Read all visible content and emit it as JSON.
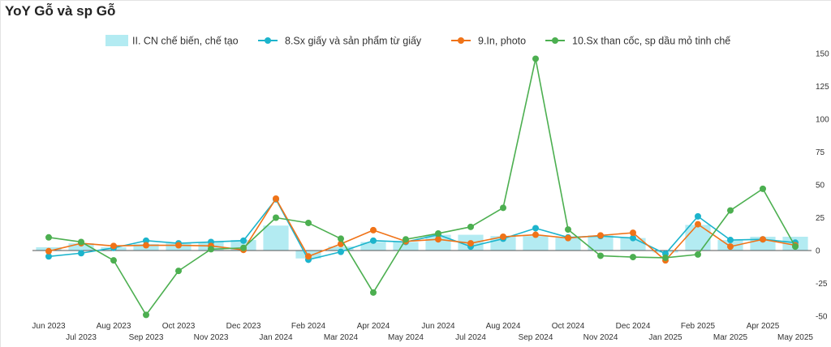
{
  "title": "YoY Gỗ và sp Gỗ",
  "colors": {
    "bar": "#b3ebf2",
    "paper": "#1cb4cc",
    "print": "#f07318",
    "coke": "#4caf50",
    "zero_line": "#555555"
  },
  "chart_data": {
    "type": "bar+line",
    "title": "YoY Gỗ và sp Gỗ",
    "xlabel": "",
    "ylabel": "",
    "categories": [
      "Jun 2023",
      "Jul 2023",
      "Aug 2023",
      "Sep 2023",
      "Oct 2023",
      "Nov 2023",
      "Dec 2023",
      "Jan 2024",
      "Feb 2024",
      "Mar 2024",
      "Apr 2024",
      "May 2024",
      "Jun 2024",
      "Jul 2024",
      "Aug 2024",
      "Sep 2024",
      "Oct 2024",
      "Nov 2024",
      "Dec 2024",
      "Jan 2025",
      "Feb 2025",
      "Mar 2025",
      "Apr 2025",
      "May 2025"
    ],
    "ylim": [
      -50,
      150
    ],
    "yticks": [
      -50,
      -25,
      0,
      25,
      50,
      75,
      100,
      125,
      150
    ],
    "y_axis_position": "right",
    "legend_position": "top",
    "grid": false,
    "series": [
      {
        "name": "II. CN chế biến, chế tạo",
        "kind": "bar",
        "color": "#b3ebf2",
        "values": [
          2.5,
          5.5,
          2.5,
          5,
          5.5,
          6.5,
          8,
          19,
          -6,
          3,
          6.5,
          6.5,
          12,
          12,
          11,
          11,
          10,
          11.5,
          9.5,
          -1.5,
          19.5,
          8,
          10.5,
          10.5
        ]
      },
      {
        "name": "8.Sx giấy và sản phẩm từ giấy",
        "kind": "line",
        "color": "#1cb4cc",
        "values": [
          -4.5,
          -2,
          2,
          7.5,
          5.5,
          6.5,
          7.5,
          39,
          -7,
          -1,
          7.5,
          6.5,
          12,
          3,
          9,
          17,
          10,
          11,
          9.5,
          -2.5,
          26,
          8,
          8.5,
          6
        ]
      },
      {
        "name": "9.In, photo",
        "kind": "line",
        "color": "#f07318",
        "values": [
          -0.5,
          5.5,
          3.5,
          4,
          4,
          3.5,
          0.5,
          39.5,
          -4.5,
          5,
          15.5,
          7,
          8.5,
          5.5,
          10.5,
          12,
          9.5,
          11.5,
          13.5,
          -7.5,
          20,
          3,
          8.5,
          4
        ]
      },
      {
        "name": "10.Sx than cốc, sp dầu mỏ tinh chế",
        "kind": "line",
        "color": "#4caf50",
        "values": [
          10,
          6.5,
          -7.5,
          -49,
          -15.5,
          1,
          2,
          25,
          21,
          9,
          -32,
          8.5,
          13,
          18,
          32.5,
          146,
          16,
          -4,
          -5,
          -5.5,
          -3,
          30.5,
          47,
          3
        ]
      }
    ]
  }
}
